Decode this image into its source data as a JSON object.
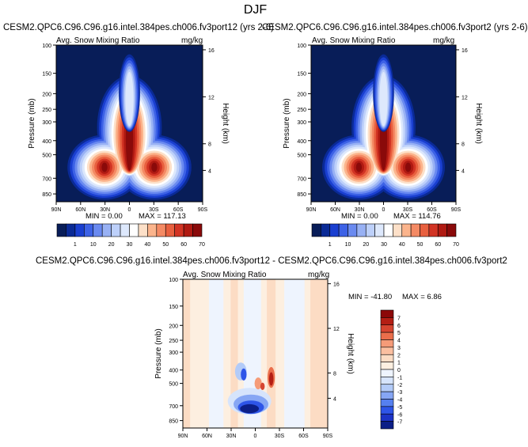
{
  "figure": {
    "title": "DJF"
  },
  "colors": {
    "cmap": [
      "#081d58",
      "#0a2a96",
      "#1a3fd0",
      "#3d62e6",
      "#6a8af0",
      "#98b1f4",
      "#bdd0fa",
      "#dde8fc",
      "#ffffff",
      "#fde0c8",
      "#fbb48c",
      "#f48a64",
      "#e8603f",
      "#d23424",
      "#b01a12",
      "#8a0a0a"
    ],
    "diff_cmap": [
      "#0c1f87",
      "#1c33c6",
      "#2e55e8",
      "#5680f0",
      "#86a6f4",
      "#b3cbf8",
      "#d6e4fc",
      "#eef4fe",
      "#fdefe0",
      "#fcdcc4",
      "#fbbfa0",
      "#f59b78",
      "#ea6e4b",
      "#d64530",
      "#b41e14",
      "#8c0808"
    ]
  },
  "chart_data": [
    {
      "type": "heatmap",
      "title": "CESM2.QPC6.C96.C96.g16.intel.384pes.ch006.fv3port12 (yrs 2-6)",
      "left_label": "Avg. Snow Mixing Ratio",
      "units": "mg/kg",
      "ylabel": "Pressure (mb)",
      "ylabel_right": "Height (km)",
      "x_ticks": [
        "90N",
        "60N",
        "30N",
        "0",
        "30S",
        "60S",
        "90S"
      ],
      "y_ticks": [
        "100",
        "150",
        "200",
        "250",
        "300",
        "400",
        "500",
        "700",
        "850"
      ],
      "y_ticks_right": [
        "16",
        "12",
        "8",
        "4"
      ],
      "min_label": "MIN =   0.00",
      "max_label": "MAX = 117.13",
      "min": 0.0,
      "max": 117.13,
      "colorbar_labels": [
        "1",
        "10",
        "20",
        "30",
        "40",
        "50",
        "60",
        "70"
      ]
    },
    {
      "type": "heatmap",
      "title": "CESM2.QPC6.C96.C96.g16.intel.384pes.ch006.fv3port2 (yrs 2-6)",
      "left_label": "Avg. Snow Mixing Ratio",
      "units": "mg/kg",
      "ylabel": "Pressure (mb)",
      "ylabel_right": "Height (km)",
      "x_ticks": [
        "90N",
        "60N",
        "30N",
        "0",
        "30S",
        "60S",
        "90S"
      ],
      "y_ticks": [
        "100",
        "150",
        "200",
        "250",
        "300",
        "400",
        "500",
        "700",
        "850"
      ],
      "y_ticks_right": [
        "16",
        "12",
        "8",
        "4"
      ],
      "min_label": "MIN =   0.00",
      "max_label": "MAX = 114.76",
      "min": 0.0,
      "max": 114.76,
      "colorbar_labels": [
        "1",
        "10",
        "20",
        "30",
        "40",
        "50",
        "60",
        "70"
      ]
    },
    {
      "type": "heatmap",
      "title": "CESM2.QPC6.C96.C96.g16.intel.384pes.ch006.fv3port12 - CESM2.QPC6.C96.C96.g16.intel.384pes.ch006.fv3port2",
      "left_label": "Avg. Snow Mixing Ratio",
      "units": "mg/kg",
      "ylabel": "Pressure (mb)",
      "ylabel_right": "Height (km)",
      "x_ticks": [
        "90N",
        "60N",
        "30N",
        "0",
        "30S",
        "60S",
        "90S"
      ],
      "y_ticks": [
        "100",
        "150",
        "200",
        "250",
        "300",
        "400",
        "500",
        "700",
        "850"
      ],
      "y_ticks_right": [
        "16",
        "12",
        "8",
        "4"
      ],
      "min_label": "MIN = -41.80",
      "max_label": "MAX =   6.86",
      "min": -41.8,
      "max": 6.86,
      "colorbar_labels": [
        "7",
        "6",
        "5",
        "4",
        "3",
        "2",
        "1",
        "0",
        "-1",
        "-2",
        "-3",
        "-4",
        "-5",
        "-6",
        "-7"
      ]
    }
  ]
}
